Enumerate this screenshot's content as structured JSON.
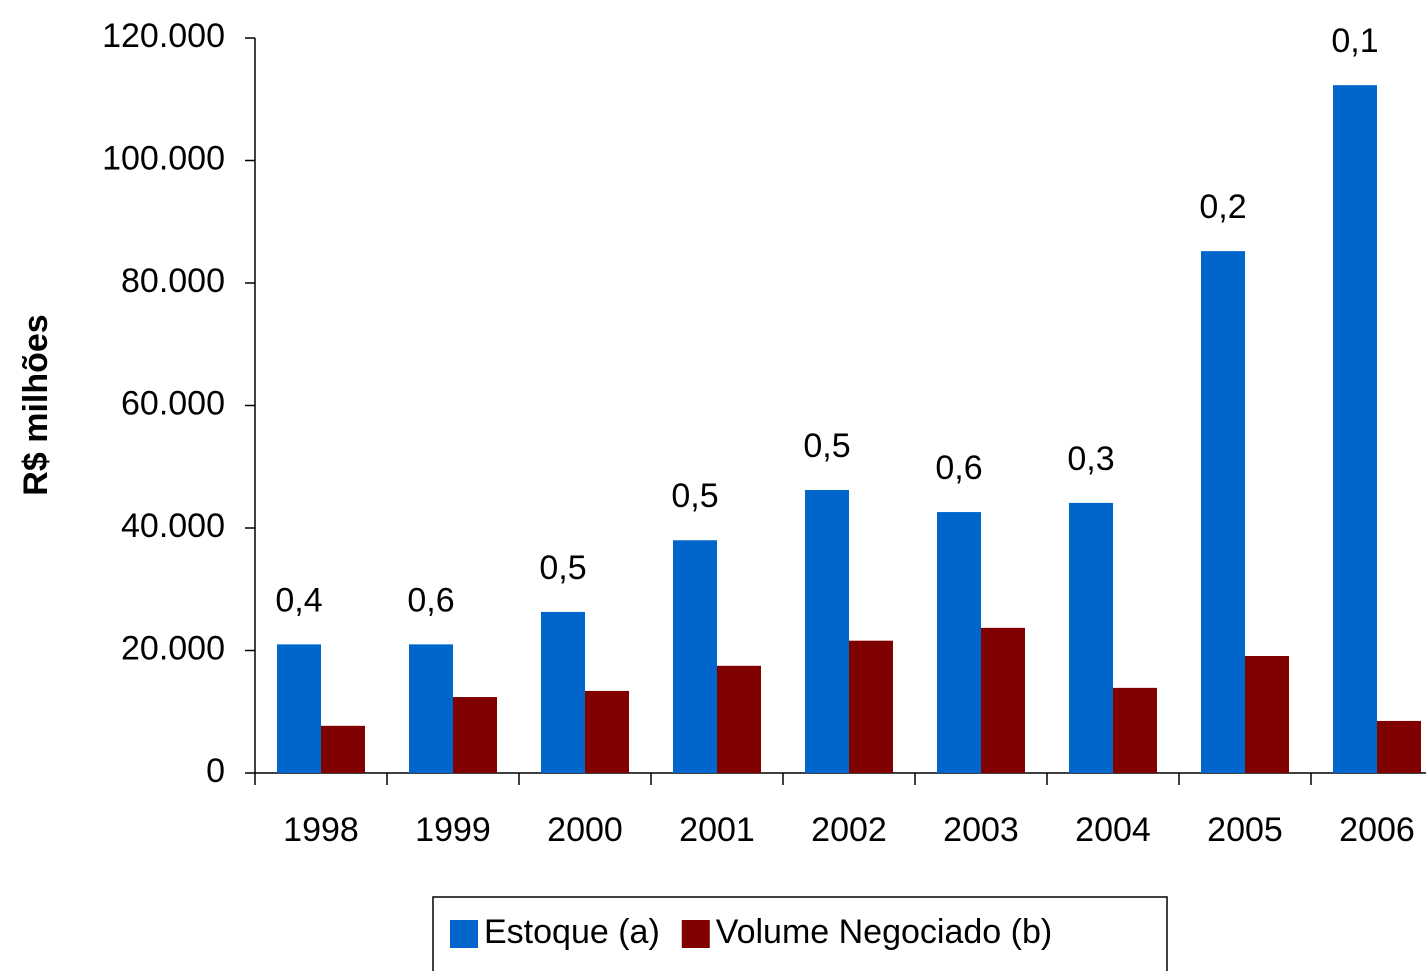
{
  "chart_data": {
    "type": "bar",
    "y_label": "R$ milhões",
    "categories": [
      "1998",
      "1999",
      "2000",
      "2001",
      "2002",
      "2003",
      "2004",
      "2005",
      "2006"
    ],
    "series": [
      {
        "name": "Estoque (a)",
        "color": "#0066cc",
        "values": [
          21000,
          21000,
          26300,
          38000,
          46200,
          42600,
          44100,
          85200,
          112300
        ]
      },
      {
        "name": "Volume Negociado (b)",
        "color": "#800000",
        "values": [
          7700,
          12400,
          13400,
          17500,
          21600,
          23700,
          13900,
          19100,
          8500
        ]
      }
    ],
    "annotations": [
      "0,4",
      "0,6",
      "0,5",
      "0,5",
      "0,5",
      "0,6",
      "0,3",
      "0,2",
      "0,1"
    ],
    "ylim": [
      0,
      120000
    ],
    "yticks": [
      0,
      {
        "value": 20000,
        "label": "20.000"
      },
      {
        "value": 40000,
        "label": "40.000"
      },
      {
        "value": 60000,
        "label": "60.000"
      },
      {
        "value": 80000,
        "label": "80.000"
      },
      {
        "value": 100000,
        "label": "100.000"
      },
      {
        "value": 120000,
        "label": "120.000"
      }
    ],
    "grid": false,
    "legend": "bottom"
  }
}
